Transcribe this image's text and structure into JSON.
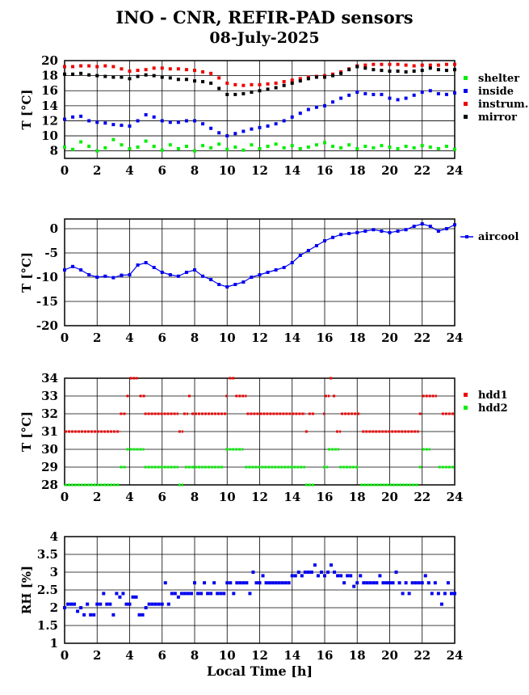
{
  "header": {
    "title": "INO - CNR, REFIR-PAD sensors",
    "date": "08-July-2025"
  },
  "chart_data": [
    {
      "type": "scatter",
      "ylabel": "T [°C]",
      "xlabel": "",
      "xlim": [
        0,
        24
      ],
      "ylim": [
        7,
        20
      ],
      "xticks": [
        0,
        2,
        4,
        6,
        8,
        10,
        12,
        14,
        16,
        18,
        20,
        22,
        24
      ],
      "yticks": [
        8,
        10,
        12,
        14,
        16,
        18,
        20
      ],
      "grid": true,
      "legend_position": "right",
      "series": [
        {
          "name": "shelter",
          "color": "#00ee00",
          "x": [
            0,
            0.5,
            1,
            1.5,
            2,
            2.5,
            3,
            3.5,
            4,
            4.5,
            5,
            5.5,
            6,
            6.5,
            7,
            7.5,
            8,
            8.5,
            9,
            9.5,
            10,
            10.5,
            11,
            11.5,
            12,
            12.5,
            13,
            13.5,
            14,
            14.5,
            15,
            15.5,
            16,
            16.5,
            17,
            17.5,
            18,
            18.5,
            19,
            19.5,
            20,
            20.5,
            21,
            21.5,
            22,
            22.5,
            23,
            23.5,
            24
          ],
          "values": [
            8.5,
            8.2,
            9.2,
            8.6,
            8.0,
            8.4,
            9.5,
            8.8,
            8.3,
            8.5,
            9.3,
            8.6,
            8.1,
            8.8,
            8.3,
            8.6,
            8.0,
            8.7,
            8.4,
            8.9,
            8.2,
            8.5,
            8.1,
            8.8,
            8.3,
            8.6,
            8.9,
            8.4,
            8.7,
            8.3,
            8.5,
            8.8,
            9.1,
            8.6,
            8.4,
            8.8,
            8.3,
            8.6,
            8.4,
            8.7,
            8.5,
            8.3,
            8.6,
            8.4,
            8.7,
            8.5,
            8.3,
            8.6,
            8.2
          ]
        },
        {
          "name": "inside",
          "color": "#0000ee",
          "x": [
            0,
            0.5,
            1,
            1.5,
            2,
            2.5,
            3,
            3.5,
            4,
            4.5,
            5,
            5.5,
            6,
            6.5,
            7,
            7.5,
            8,
            8.5,
            9,
            9.5,
            10,
            10.5,
            11,
            11.5,
            12,
            12.5,
            13,
            13.5,
            14,
            14.5,
            15,
            15.5,
            16,
            16.5,
            17,
            17.5,
            18,
            18.5,
            19,
            19.5,
            20,
            20.5,
            21,
            21.5,
            22,
            22.5,
            23,
            23.5,
            24
          ],
          "values": [
            12.2,
            12.5,
            12.6,
            12.0,
            11.8,
            11.7,
            11.5,
            11.4,
            11.3,
            12.0,
            12.8,
            12.5,
            12.0,
            11.8,
            11.8,
            12.0,
            12.0,
            11.6,
            11.0,
            10.4,
            10.0,
            10.3,
            10.6,
            10.9,
            11.1,
            11.3,
            11.6,
            12.0,
            12.5,
            13.0,
            13.5,
            13.8,
            14.0,
            14.5,
            15.0,
            15.4,
            15.8,
            15.6,
            15.5,
            15.5,
            15.0,
            14.8,
            15.0,
            15.4,
            15.8,
            16.0,
            15.6,
            15.5,
            15.7
          ]
        },
        {
          "name": "instrum.",
          "color": "#ee0000",
          "x": [
            0,
            0.5,
            1,
            1.5,
            2,
            2.5,
            3,
            3.5,
            4,
            4.5,
            5,
            5.5,
            6,
            6.5,
            7,
            7.5,
            8,
            8.5,
            9,
            9.5,
            10,
            10.5,
            11,
            11.5,
            12,
            12.5,
            13,
            13.5,
            14,
            14.5,
            15,
            15.5,
            16,
            16.5,
            17,
            17.5,
            18,
            18.5,
            19,
            19.5,
            20,
            20.5,
            21,
            21.5,
            22,
            22.5,
            23,
            23.5,
            24
          ],
          "values": [
            19.2,
            19.2,
            19.3,
            19.3,
            19.2,
            19.3,
            19.2,
            18.9,
            18.6,
            18.7,
            18.8,
            19.0,
            19.0,
            18.9,
            18.9,
            18.8,
            18.7,
            18.5,
            18.3,
            17.7,
            17.0,
            16.8,
            16.7,
            16.8,
            16.8,
            16.9,
            17.0,
            17.2,
            17.4,
            17.6,
            17.8,
            17.9,
            18.0,
            18.2,
            18.5,
            18.9,
            19.3,
            19.4,
            19.5,
            19.5,
            19.5,
            19.5,
            19.4,
            19.3,
            19.4,
            19.4,
            19.4,
            19.5,
            19.5
          ]
        },
        {
          "name": "mirror",
          "color": "#000000",
          "x": [
            0,
            0.5,
            1,
            1.5,
            2,
            2.5,
            3,
            3.5,
            4,
            4.5,
            5,
            5.5,
            6,
            6.5,
            7,
            7.5,
            8,
            8.5,
            9,
            9.5,
            10,
            10.5,
            11,
            11.5,
            12,
            12.5,
            13,
            13.5,
            14,
            14.5,
            15,
            15.5,
            16,
            16.5,
            17,
            17.5,
            18,
            18.5,
            19,
            19.5,
            20,
            20.5,
            21,
            21.5,
            22,
            22.5,
            23,
            23.5,
            24
          ],
          "values": [
            18.2,
            18.2,
            18.3,
            18.1,
            18.0,
            17.9,
            17.8,
            17.8,
            17.6,
            17.9,
            18.1,
            18.0,
            17.8,
            17.7,
            17.5,
            17.5,
            17.3,
            17.2,
            17.0,
            16.3,
            15.5,
            15.5,
            15.6,
            15.8,
            16.0,
            16.2,
            16.4,
            16.7,
            17.0,
            17.3,
            17.6,
            17.8,
            17.8,
            18.0,
            18.3,
            18.8,
            19.2,
            19.0,
            18.8,
            18.7,
            18.6,
            18.6,
            18.5,
            18.6,
            18.7,
            19.0,
            18.8,
            18.7,
            18.8
          ]
        }
      ]
    },
    {
      "type": "line",
      "ylabel": "T [°C]",
      "xlabel": "",
      "xlim": [
        0,
        24
      ],
      "ylim": [
        -20,
        2
      ],
      "xticks": [
        0,
        2,
        4,
        6,
        8,
        10,
        12,
        14,
        16,
        18,
        20,
        22,
        24
      ],
      "yticks": [
        0,
        -5,
        -10,
        -15,
        -20
      ],
      "grid": true,
      "legend_position": "right",
      "series": [
        {
          "name": "aircool",
          "color": "#0000ee",
          "x": [
            0,
            0.5,
            1,
            1.5,
            2,
            2.5,
            3,
            3.5,
            4,
            4.5,
            5,
            5.5,
            6,
            6.5,
            7,
            7.5,
            8,
            8.5,
            9,
            9.5,
            10,
            10.5,
            11,
            11.5,
            12,
            12.5,
            13,
            13.5,
            14,
            14.5,
            15,
            15.5,
            16,
            16.5,
            17,
            17.5,
            18,
            18.5,
            19,
            19.5,
            20,
            20.5,
            21,
            21.5,
            22,
            22.5,
            23,
            23.5,
            24
          ],
          "values": [
            -8.5,
            -7.8,
            -8.5,
            -9.5,
            -10.0,
            -9.8,
            -10.1,
            -9.6,
            -9.5,
            -7.5,
            -7.0,
            -8.0,
            -9.0,
            -9.5,
            -9.8,
            -9.0,
            -8.5,
            -9.8,
            -10.5,
            -11.5,
            -12.0,
            -11.5,
            -11.0,
            -10.0,
            -9.5,
            -9.0,
            -8.5,
            -8.0,
            -7.0,
            -5.5,
            -4.5,
            -3.5,
            -2.5,
            -1.8,
            -1.2,
            -1.0,
            -0.8,
            -0.5,
            -0.2,
            -0.5,
            -0.8,
            -0.5,
            -0.2,
            0.5,
            1.0,
            0.5,
            -0.5,
            0.0,
            0.8
          ]
        }
      ]
    },
    {
      "type": "scatter",
      "ylabel": "T [°C]",
      "xlabel": "",
      "xlim": [
        0,
        24
      ],
      "ylim": [
        28,
        34
      ],
      "xticks": [
        0,
        2,
        4,
        6,
        8,
        10,
        12,
        14,
        16,
        18,
        20,
        22,
        24
      ],
      "yticks": [
        28,
        29,
        30,
        31,
        32,
        33,
        34
      ],
      "grid": true,
      "legend_position": "right",
      "series": [
        {
          "name": "hdd1",
          "color": "#ee0000",
          "segments": [
            [
              0,
              3.4,
              31
            ],
            [
              3.4,
              3.8,
              32
            ],
            [
              3.8,
              4.0,
              33
            ],
            [
              4.0,
              4.5,
              34
            ],
            [
              4.6,
              5.0,
              33
            ],
            [
              4.9,
              7.0,
              32
            ],
            [
              7.0,
              7.3,
              31
            ],
            [
              7.3,
              7.6,
              32
            ],
            [
              7.6,
              7.8,
              33
            ],
            [
              7.8,
              10.0,
              32
            ],
            [
              9.9,
              10.0,
              33
            ],
            [
              10.1,
              10.5,
              34
            ],
            [
              10.5,
              11.2,
              33
            ],
            [
              11.2,
              14.8,
              32
            ],
            [
              14.8,
              15.0,
              31
            ],
            [
              15.0,
              15.4,
              32
            ],
            [
              15.9,
              16.0,
              32
            ],
            [
              16.0,
              16.3,
              33
            ],
            [
              16.3,
              16.5,
              34
            ],
            [
              16.5,
              16.7,
              33
            ],
            [
              16.7,
              17.0,
              31
            ],
            [
              17.0,
              18.2,
              32
            ],
            [
              18.3,
              21.8,
              31
            ],
            [
              21.8,
              22.0,
              32
            ],
            [
              22.0,
              22.9,
              33
            ],
            [
              23.2,
              24,
              32
            ]
          ]
        },
        {
          "name": "hdd2",
          "color": "#00ee00",
          "segments": [
            [
              0,
              3.4,
              28
            ],
            [
              3.4,
              3.8,
              29
            ],
            [
              3.8,
              4.9,
              30
            ],
            [
              4.9,
              7.0,
              29
            ],
            [
              7.0,
              7.3,
              28
            ],
            [
              7.4,
              9.8,
              29
            ],
            [
              9.9,
              11.0,
              30
            ],
            [
              11.1,
              14.8,
              29
            ],
            [
              14.8,
              15.4,
              28
            ],
            [
              15.9,
              16.2,
              29
            ],
            [
              16.2,
              16.9,
              30
            ],
            [
              16.9,
              18.1,
              29
            ],
            [
              18.2,
              21.8,
              28
            ],
            [
              21.8,
              22.0,
              29
            ],
            [
              22.0,
              22.5,
              30
            ],
            [
              23.0,
              24,
              29
            ]
          ]
        }
      ]
    },
    {
      "type": "scatter",
      "ylabel": "RH [%]",
      "xlabel": "Local Time [h]",
      "xlim": [
        0,
        24
      ],
      "ylim": [
        1,
        4
      ],
      "xticks": [
        0,
        2,
        4,
        6,
        8,
        10,
        12,
        14,
        16,
        18,
        20,
        22,
        24
      ],
      "yticks": [
        1,
        1.5,
        2,
        2.5,
        3,
        3.5,
        4
      ],
      "ytick_labels": [
        "1",
        "1.5",
        "2",
        "2.5",
        "3",
        "3.5",
        "4"
      ],
      "grid": true,
      "series": [
        {
          "name": "",
          "color": "#0000ee",
          "x": [
            0,
            0.2,
            0.4,
            0.6,
            0.8,
            1.0,
            1.2,
            1.4,
            1.6,
            1.8,
            2.0,
            2.2,
            2.4,
            2.6,
            2.8,
            3.0,
            3.2,
            3.4,
            3.6,
            3.8,
            4.0,
            4.2,
            4.4,
            4.6,
            4.8,
            5.0,
            5.2,
            5.4,
            5.6,
            5.8,
            6.0,
            6.2,
            6.4,
            6.6,
            6.8,
            7.0,
            7.2,
            7.4,
            7.6,
            7.8,
            8.0,
            8.2,
            8.4,
            8.6,
            8.8,
            9.0,
            9.2,
            9.4,
            9.6,
            9.8,
            10.0,
            10.2,
            10.4,
            10.6,
            10.8,
            11.0,
            11.2,
            11.4,
            11.6,
            11.8,
            12.0,
            12.2,
            12.4,
            12.6,
            12.8,
            13.0,
            13.2,
            13.4,
            13.6,
            13.8,
            14.0,
            14.2,
            14.4,
            14.6,
            14.8,
            15.0,
            15.2,
            15.4,
            15.6,
            15.8,
            16.0,
            16.2,
            16.4,
            16.6,
            16.8,
            17.0,
            17.2,
            17.4,
            17.6,
            17.8,
            18.0,
            18.2,
            18.4,
            18.6,
            18.8,
            19.0,
            19.2,
            19.4,
            19.6,
            19.8,
            20.0,
            20.2,
            20.4,
            20.6,
            20.8,
            21.0,
            21.2,
            21.4,
            21.6,
            21.8,
            22.0,
            22.2,
            22.4,
            22.6,
            22.8,
            23.0,
            23.2,
            23.4,
            23.6,
            23.8,
            24.0
          ],
          "values": [
            2.0,
            2.1,
            2.1,
            2.1,
            1.9,
            2.0,
            1.8,
            2.1,
            1.8,
            1.8,
            2.1,
            2.1,
            2.4,
            2.1,
            2.1,
            1.8,
            2.4,
            2.3,
            2.4,
            2.1,
            2.1,
            2.3,
            2.3,
            1.8,
            1.8,
            2.0,
            2.1,
            2.1,
            2.1,
            2.1,
            2.1,
            2.7,
            2.1,
            2.4,
            2.4,
            2.3,
            2.4,
            2.4,
            2.4,
            2.4,
            2.7,
            2.4,
            2.4,
            2.7,
            2.4,
            2.4,
            2.7,
            2.4,
            2.4,
            2.4,
            2.7,
            2.7,
            2.4,
            2.7,
            2.7,
            2.7,
            2.7,
            2.4,
            3.0,
            2.7,
            2.7,
            2.9,
            2.7,
            2.7,
            2.7,
            2.7,
            2.7,
            2.7,
            2.7,
            2.7,
            2.9,
            2.9,
            3.0,
            2.9,
            3.0,
            3.0,
            3.0,
            3.2,
            2.9,
            3.0,
            2.9,
            3.0,
            3.2,
            3.0,
            2.9,
            2.9,
            2.7,
            2.9,
            2.9,
            2.6,
            2.7,
            2.9,
            2.7,
            2.7,
            2.7,
            2.7,
            2.7,
            2.9,
            2.7,
            2.7,
            2.7,
            2.7,
            3.0,
            2.7,
            2.4,
            2.7,
            2.4,
            2.7,
            2.7,
            2.7,
            2.7,
            2.9,
            2.7,
            2.4,
            2.7,
            2.4,
            2.1,
            2.4,
            2.7,
            2.4,
            2.4
          ]
        }
      ]
    }
  ]
}
